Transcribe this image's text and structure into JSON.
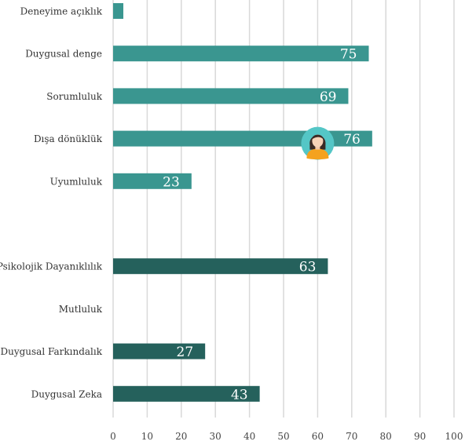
{
  "chart_data": {
    "type": "bar",
    "orientation": "horizontal",
    "xlim": [
      0,
      100
    ],
    "xticks": [
      0,
      10,
      20,
      30,
      40,
      50,
      60,
      70,
      80,
      90,
      100
    ],
    "grid": true,
    "categories": [
      "Deneyime açıklık",
      "Duygusal denge",
      "Sorumluluk",
      "Dışa dönüklük",
      "Uyumluluk",
      "",
      "Psikolojik Dayanıklılık",
      "Mutluluk",
      "Duygusal Farkındalık",
      "Duygusal Zeka"
    ],
    "values": [
      3,
      75,
      69,
      76,
      23,
      null,
      63,
      0,
      27,
      43
    ],
    "value_labels": [
      "",
      "75",
      "69",
      "76",
      "23",
      "",
      "63",
      "",
      "27",
      "43"
    ],
    "bar_colors": [
      "#3a9690",
      "#3a9690",
      "#3a9690",
      "#3a9690",
      "#3a9690",
      "",
      "#25615c",
      "#25615c",
      "#25615c",
      "#25615c"
    ],
    "marker": {
      "category_index": 3,
      "value": 60,
      "icon": "person-avatar-icon",
      "color": "#54c6c6"
    }
  }
}
